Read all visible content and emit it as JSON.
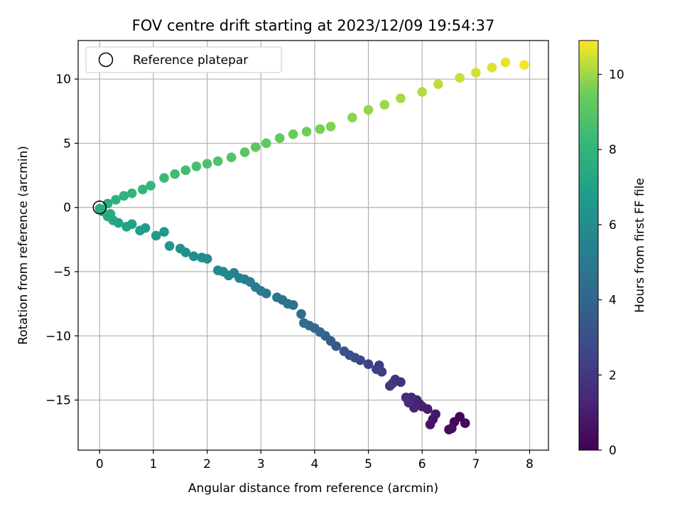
{
  "chart_data": {
    "type": "scatter",
    "title": "FOV centre drift starting at 2023/12/09 19:54:37",
    "xlabel": "Angular distance from reference (arcmin)",
    "ylabel": "Rotation from reference (arcmin)",
    "xlim": [
      -0.4,
      8.35
    ],
    "ylim": [
      -18.9,
      13.0
    ],
    "xticks": [
      0,
      1,
      2,
      3,
      4,
      5,
      6,
      7,
      8
    ],
    "yticks": [
      -15,
      -10,
      -5,
      0,
      5,
      10
    ],
    "grid": true,
    "colormap": "viridis",
    "colorbar": {
      "label": "Hours from first FF file",
      "range": [
        0,
        10.9
      ],
      "ticks": [
        0,
        2,
        4,
        6,
        8,
        10
      ]
    },
    "legend": {
      "placement": "top-left",
      "entries": [
        "Reference platepar"
      ]
    },
    "reference_point": {
      "x": 0,
      "y": 0
    },
    "series": [
      {
        "color_values_hours": [
          0.1,
          0.2,
          0.3,
          0.4,
          0.5,
          0.6,
          0.7,
          0.8,
          0.9,
          1.0,
          1.1,
          1.2,
          1.3,
          1.4,
          1.5,
          1.6,
          1.7,
          1.8,
          1.9,
          2.0,
          2.1,
          2.2,
          2.3,
          2.4,
          2.6,
          2.8,
          3.0,
          3.2,
          3.4,
          3.6,
          3.8,
          4.0,
          4.1,
          4.2,
          4.3,
          4.4,
          4.5,
          4.6,
          4.7,
          4.8,
          4.9,
          5.0,
          5.1,
          5.2,
          5.3,
          5.4,
          5.5,
          5.6,
          5.7,
          5.8,
          5.9,
          6.0,
          6.1,
          6.2,
          6.3,
          6.4,
          6.5,
          6.6,
          6.7,
          6.8,
          6.9,
          7.0,
          7.1,
          7.2,
          7.3,
          7.4,
          7.5,
          7.6,
          7.7,
          7.8,
          7.9,
          8.0,
          8.1,
          8.2,
          8.3,
          8.4,
          8.5,
          8.6,
          8.7,
          8.8,
          8.9,
          9.0,
          9.1,
          9.2,
          9.3,
          9.4,
          9.5,
          9.6,
          9.7,
          9.8,
          9.9,
          10.0,
          10.1,
          10.2,
          10.3,
          10.4,
          10.5,
          10.6,
          10.7,
          10.8
        ],
        "x": [
          6.7,
          6.6,
          6.5,
          6.8,
          6.55,
          6.2,
          6.15,
          6.25,
          6.1,
          6.0,
          5.95,
          5.9,
          5.85,
          5.8,
          5.75,
          5.7,
          5.6,
          5.5,
          5.45,
          5.4,
          5.25,
          5.2,
          5.15,
          5.0,
          4.85,
          4.75,
          4.65,
          4.55,
          4.4,
          4.3,
          4.2,
          4.1,
          4.0,
          3.9,
          3.8,
          3.75,
          3.6,
          3.5,
          3.4,
          3.3,
          3.1,
          3.0,
          2.9,
          2.8,
          2.7,
          2.6,
          2.5,
          2.4,
          2.3,
          2.2,
          2.0,
          1.9,
          1.75,
          1.6,
          1.5,
          1.3,
          1.2,
          1.05,
          0.85,
          0.75,
          0.6,
          0.5,
          0.35,
          0.25,
          0.15,
          0.2,
          0.05,
          0.0,
          0.15,
          0.3,
          0.45,
          0.6,
          0.8,
          0.95,
          1.2,
          1.4,
          1.6,
          1.8,
          2.0,
          2.2,
          2.45,
          2.7,
          2.9,
          3.1,
          3.35,
          3.6,
          3.85,
          4.1,
          4.3,
          4.7,
          5.0,
          5.3,
          5.6,
          6.0,
          6.3,
          6.7,
          7.0,
          7.3,
          7.55,
          7.9
        ],
        "y": [
          -16.3,
          -16.7,
          -17.3,
          -16.8,
          -17.2,
          -16.5,
          -16.9,
          -16.1,
          -15.7,
          -15.5,
          -15.3,
          -15.0,
          -15.6,
          -14.8,
          -15.2,
          -14.8,
          -13.6,
          -13.4,
          -13.7,
          -13.9,
          -12.8,
          -12.3,
          -12.6,
          -12.2,
          -11.9,
          -11.7,
          -11.5,
          -11.2,
          -10.8,
          -10.4,
          -10.0,
          -9.7,
          -9.4,
          -9.2,
          -9.0,
          -8.3,
          -7.6,
          -7.5,
          -7.2,
          -7.0,
          -6.7,
          -6.5,
          -6.2,
          -5.8,
          -5.6,
          -5.5,
          -5.1,
          -5.3,
          -5.0,
          -4.9,
          -4.0,
          -3.9,
          -3.8,
          -3.5,
          -3.2,
          -3.0,
          -1.9,
          -2.2,
          -1.6,
          -1.8,
          -1.3,
          -1.5,
          -1.2,
          -1.0,
          -0.7,
          -0.5,
          -0.3,
          -0.1,
          0.3,
          0.6,
          0.9,
          1.1,
          1.4,
          1.7,
          2.3,
          2.6,
          2.9,
          3.2,
          3.4,
          3.6,
          3.9,
          4.3,
          4.7,
          5.0,
          5.4,
          5.7,
          5.9,
          6.1,
          6.3,
          7.0,
          7.6,
          8.0,
          8.5,
          9.0,
          9.6,
          10.1,
          10.5,
          10.9,
          11.3,
          11.1
        ]
      }
    ]
  }
}
